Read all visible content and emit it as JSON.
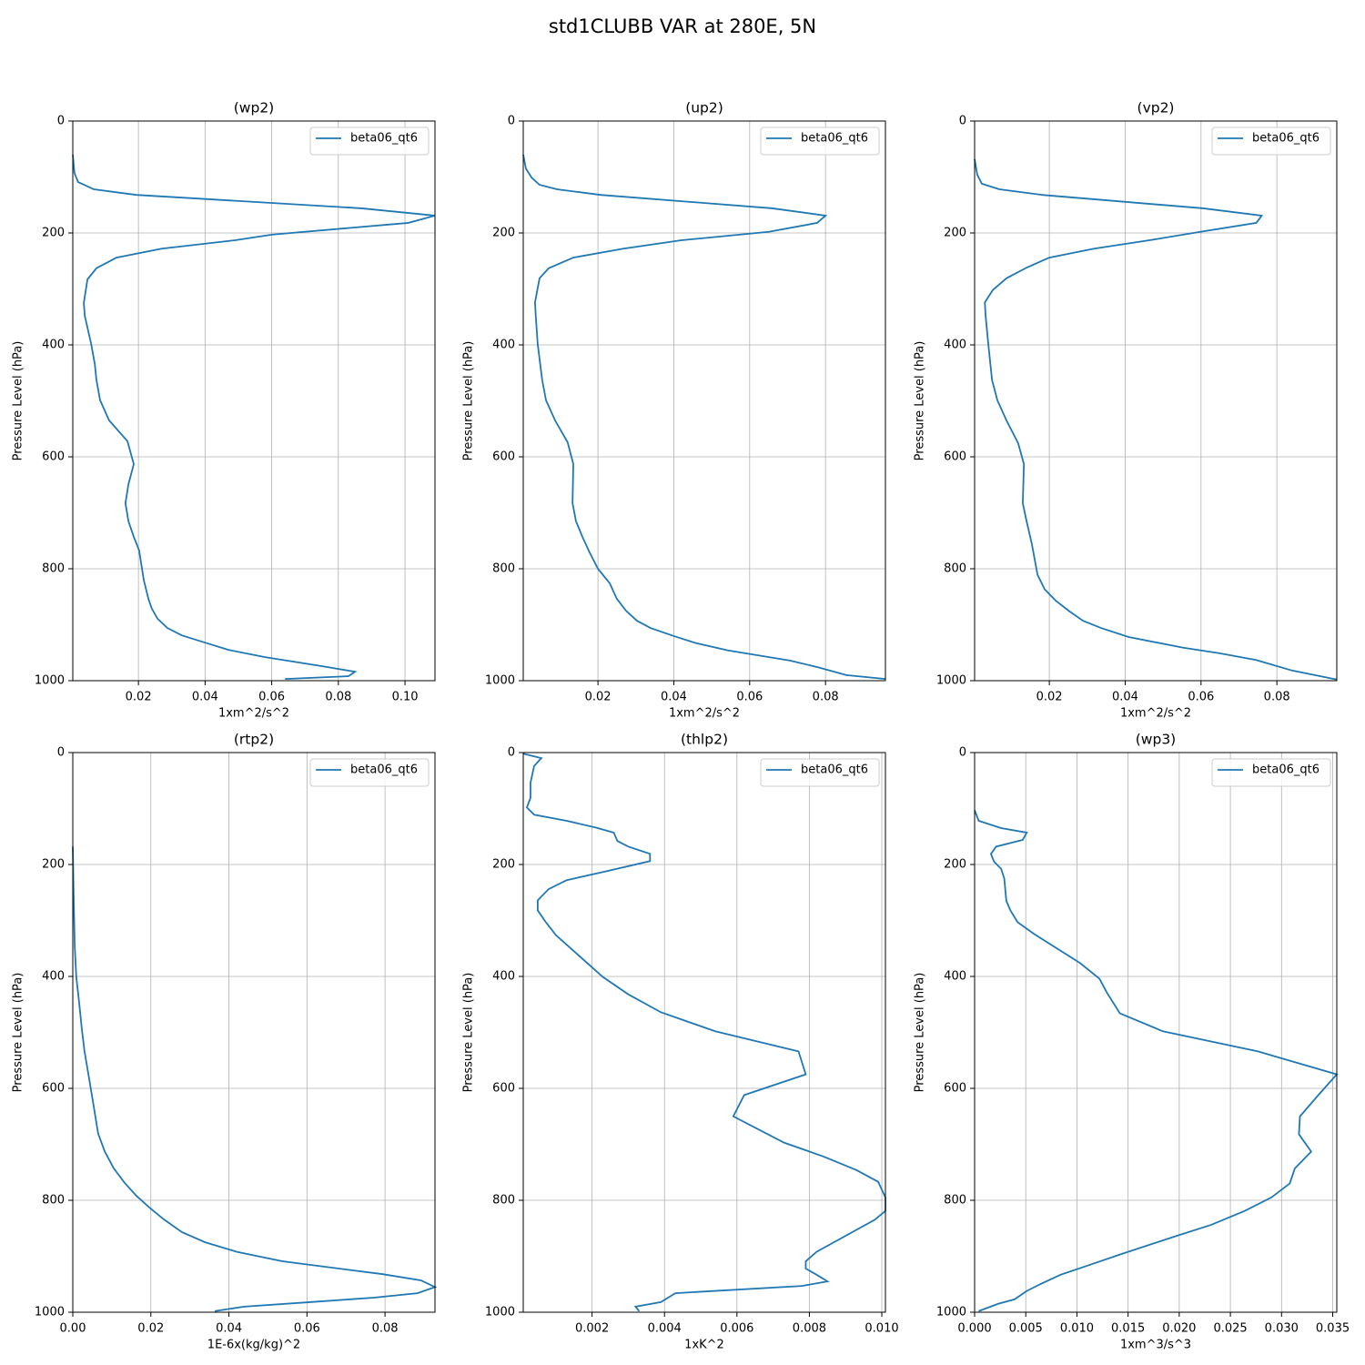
{
  "title": "std1CLUBB VAR at 280E, 5N",
  "chart_data": [
    {
      "type": "line",
      "title": "(wp2)",
      "x_label": "1xm^2/s^2",
      "y_label": "Pressure Level (hPa)",
      "grid": true,
      "legend": "upper right",
      "xlim": [
        0.0003,
        0.109
      ],
      "xticks": [
        0.02,
        0.04,
        0.06,
        0.08,
        {
          "value": 0.1,
          "label": "0.10"
        }
      ],
      "ylim": [
        1000,
        0
      ],
      "yticks": [
        0,
        200,
        400,
        600,
        800,
        1000
      ],
      "y": [
        60,
        93,
        109,
        122,
        132,
        156,
        169,
        182,
        203,
        213,
        228,
        244,
        263,
        283,
        325,
        348,
        398,
        434,
        463,
        499,
        535,
        572,
        613,
        649,
        683,
        715,
        743,
        767,
        820,
        854,
        871,
        889,
        906,
        919,
        932,
        945,
        958,
        974,
        984,
        992,
        997
      ],
      "series": [
        {
          "name": "beta06_qt6",
          "color": "#1f77b4",
          "values": [
            0.0003,
            0.0008,
            0.0019,
            0.0066,
            0.0194,
            0.087,
            0.109,
            0.101,
            0.06,
            0.049,
            0.027,
            0.0134,
            0.0074,
            0.0047,
            0.0036,
            0.0039,
            0.0058,
            0.0069,
            0.0074,
            0.0085,
            0.0112,
            0.0167,
            0.0186,
            0.017,
            0.0161,
            0.017,
            0.0186,
            0.0202,
            0.0216,
            0.023,
            0.024,
            0.0257,
            0.0287,
            0.033,
            0.04,
            0.047,
            0.058,
            0.075,
            0.085,
            0.083,
            0.064
          ]
        }
      ]
    },
    {
      "type": "line",
      "title": "(up2)",
      "x_label": "1xm^2/s^2",
      "y_label": "Pressure Level (hPa)",
      "grid": true,
      "legend": "upper right",
      "xlim": [
        0.0003,
        0.0958
      ],
      "xticks": [
        0.02,
        0.04,
        0.06,
        0.08
      ],
      "ylim": [
        1000,
        0
      ],
      "yticks": [
        0,
        200,
        400,
        600,
        800,
        1000
      ],
      "y": [
        60,
        85,
        101,
        114,
        122,
        132,
        156,
        169,
        182,
        198,
        213,
        228,
        244,
        263,
        281,
        324,
        348,
        398,
        463,
        499,
        535,
        574,
        613,
        683,
        715,
        743,
        771,
        800,
        826,
        854,
        875,
        893,
        906,
        920,
        933,
        946,
        964,
        976,
        990,
        997
      ],
      "series": [
        {
          "name": "beta06_qt6",
          "color": "#1f77b4",
          "values": [
            0.0003,
            0.001,
            0.0025,
            0.0046,
            0.0092,
            0.0207,
            0.066,
            0.08,
            0.0778,
            0.065,
            0.042,
            0.0267,
            0.0135,
            0.007,
            0.0046,
            0.0034,
            0.0036,
            0.0041,
            0.0053,
            0.0063,
            0.0087,
            0.012,
            0.0135,
            0.0133,
            0.0142,
            0.0159,
            0.0178,
            0.02,
            0.0231,
            0.025,
            0.0274,
            0.0303,
            0.0339,
            0.0399,
            0.0459,
            0.0543,
            0.0706,
            0.078,
            0.0855,
            0.0958
          ]
        }
      ]
    },
    {
      "type": "line",
      "title": "(vp2)",
      "x_label": "1xm^2/s^2",
      "y_label": "Pressure Level (hPa)",
      "grid": true,
      "legend": "upper right",
      "xlim": [
        0.0003,
        0.0958
      ],
      "xticks": [
        0.02,
        0.04,
        0.06,
        0.08
      ],
      "ylim": [
        1000,
        0
      ],
      "yticks": [
        0,
        200,
        400,
        600,
        800,
        1000
      ],
      "y": [
        68,
        96,
        112,
        122,
        132,
        156,
        169,
        182,
        198,
        213,
        228,
        244,
        262,
        281,
        302,
        324,
        348,
        398,
        463,
        499,
        535,
        576,
        613,
        683,
        715,
        756,
        811,
        837,
        857,
        876,
        893,
        906,
        922,
        941,
        951,
        963,
        982,
        998
      ],
      "series": [
        {
          "name": "beta06_qt6",
          "color": "#1f77b4",
          "values": [
            0.0003,
            0.001,
            0.0022,
            0.0068,
            0.0181,
            0.0606,
            0.076,
            0.0746,
            0.0598,
            0.0464,
            0.0318,
            0.02,
            0.014,
            0.0087,
            0.0051,
            0.003,
            0.0032,
            0.0039,
            0.0049,
            0.0063,
            0.0087,
            0.0118,
            0.0133,
            0.013,
            0.014,
            0.0154,
            0.0169,
            0.0188,
            0.0217,
            0.0253,
            0.0289,
            0.0337,
            0.0409,
            0.0553,
            0.0649,
            0.0745,
            0.0841,
            0.0958
          ]
        }
      ]
    },
    {
      "type": "line",
      "title": "(rtp2)",
      "x_label": "1E-6x(kg/kg)^2",
      "y_label": "Pressure Level (hPa)",
      "grid": true,
      "legend": "upper right",
      "xlim": [
        0,
        0.0928
      ],
      "xticks": [
        {
          "value": 0,
          "label": "0.00"
        },
        0.02,
        0.04,
        0.06,
        0.08
      ],
      "ylim": [
        1000,
        0
      ],
      "yticks": [
        0,
        200,
        400,
        600,
        800,
        1000
      ],
      "y": [
        168,
        249,
        347,
        401,
        445,
        493,
        534,
        575,
        621,
        681,
        713,
        743,
        769,
        792,
        814,
        834,
        857,
        875,
        892,
        909,
        932,
        943,
        955,
        966,
        974,
        982,
        990,
        998
      ],
      "series": [
        {
          "name": "beta06_qt6",
          "color": "#1f77b4",
          "values": [
            0,
            0.0002,
            0.0005,
            0.0009,
            0.0016,
            0.0023,
            0.003,
            0.004,
            0.0051,
            0.0065,
            0.0082,
            0.0105,
            0.0133,
            0.0163,
            0.0198,
            0.0233,
            0.028,
            0.0339,
            0.042,
            0.0537,
            0.0794,
            0.0892,
            0.0928,
            0.0883,
            0.0771,
            0.0607,
            0.0439,
            0.0364
          ]
        }
      ]
    },
    {
      "type": "line",
      "title": "(thlp2)",
      "x_label": "1xK^2",
      "y_label": "Pressure Level (hPa)",
      "grid": true,
      "legend": "upper right",
      "xlim": [
        0.0001,
        0.0101
      ],
      "xticks": [
        0.002,
        0.004,
        0.006,
        0.008,
        {
          "value": 0.01,
          "label": "0.010"
        }
      ],
      "ylim": [
        1000,
        0
      ],
      "yticks": [
        0,
        200,
        400,
        600,
        800,
        1000
      ],
      "y": [
        2,
        10,
        24,
        54,
        81,
        98,
        111,
        122,
        134,
        143,
        158,
        168,
        181,
        194,
        212,
        228,
        244,
        264,
        282,
        301,
        326,
        355,
        401,
        432,
        464,
        498,
        534,
        575,
        612,
        650,
        697,
        722,
        746,
        767,
        795,
        819,
        835,
        892,
        909,
        922,
        933,
        945,
        953,
        966,
        982,
        990,
        998
      ],
      "series": [
        {
          "name": "beta06_qt6",
          "color": "#1f77b4",
          "values": [
            0.0001,
            0.0006,
            0.0004,
            0.0003,
            0.0003,
            0.0002,
            0.0004,
            0.0013,
            0.0021,
            0.0026,
            0.0027,
            0.003,
            0.0036,
            0.0036,
            0.0024,
            0.0013,
            0.0008,
            0.0005,
            0.0005,
            0.0007,
            0.001,
            0.0015,
            0.0023,
            0.003,
            0.0039,
            0.0054,
            0.0077,
            0.0079,
            0.0062,
            0.0059,
            0.0073,
            0.0084,
            0.0093,
            0.0099,
            0.0101,
            0.0101,
            0.0098,
            0.0082,
            0.0079,
            0.0079,
            0.0082,
            0.0085,
            0.0078,
            0.0043,
            0.0039,
            0.0032,
            0.0033
          ]
        }
      ]
    },
    {
      "type": "line",
      "title": "(wp3)",
      "x_label": "1xm^3/s^3",
      "y_label": "Pressure Level (hPa)",
      "grid": true,
      "legend": "upper right",
      "xlim": [
        0,
        0.0354
      ],
      "xticks": [
        {
          "value": 0,
          "label": "0.000"
        },
        0.005,
        {
          "value": 0.01,
          "label": "0.010"
        },
        0.015,
        {
          "value": 0.02,
          "label": "0.020"
        },
        0.025,
        {
          "value": 0.03,
          "label": "0.030"
        },
        0.035
      ],
      "ylim": [
        1000,
        0
      ],
      "yticks": [
        0,
        200,
        400,
        600,
        800,
        1000
      ],
      "y": [
        103,
        122,
        135,
        143,
        156,
        168,
        181,
        195,
        208,
        225,
        265,
        282,
        303,
        324,
        376,
        404,
        428,
        466,
        498,
        534,
        575,
        612,
        650,
        682,
        713,
        743,
        770,
        795,
        819,
        844,
        865,
        897,
        917,
        933,
        950,
        962,
        977,
        985,
        998
      ],
      "series": [
        {
          "name": "beta06_qt6",
          "color": "#1f77b4",
          "values": [
            0,
            0.0004,
            0.0026,
            0.0051,
            0.0047,
            0.0021,
            0.0016,
            0.0019,
            0.0026,
            0.0029,
            0.0031,
            0.0035,
            0.0042,
            0.0058,
            0.0103,
            0.0122,
            0.0129,
            0.0142,
            0.0184,
            0.0277,
            0.0354,
            0.0336,
            0.0318,
            0.0317,
            0.0329,
            0.0313,
            0.0308,
            0.029,
            0.0264,
            0.0231,
            0.0195,
            0.0142,
            0.011,
            0.0084,
            0.0064,
            0.0051,
            0.0039,
            0.0023,
            0.0004
          ]
        }
      ]
    }
  ]
}
